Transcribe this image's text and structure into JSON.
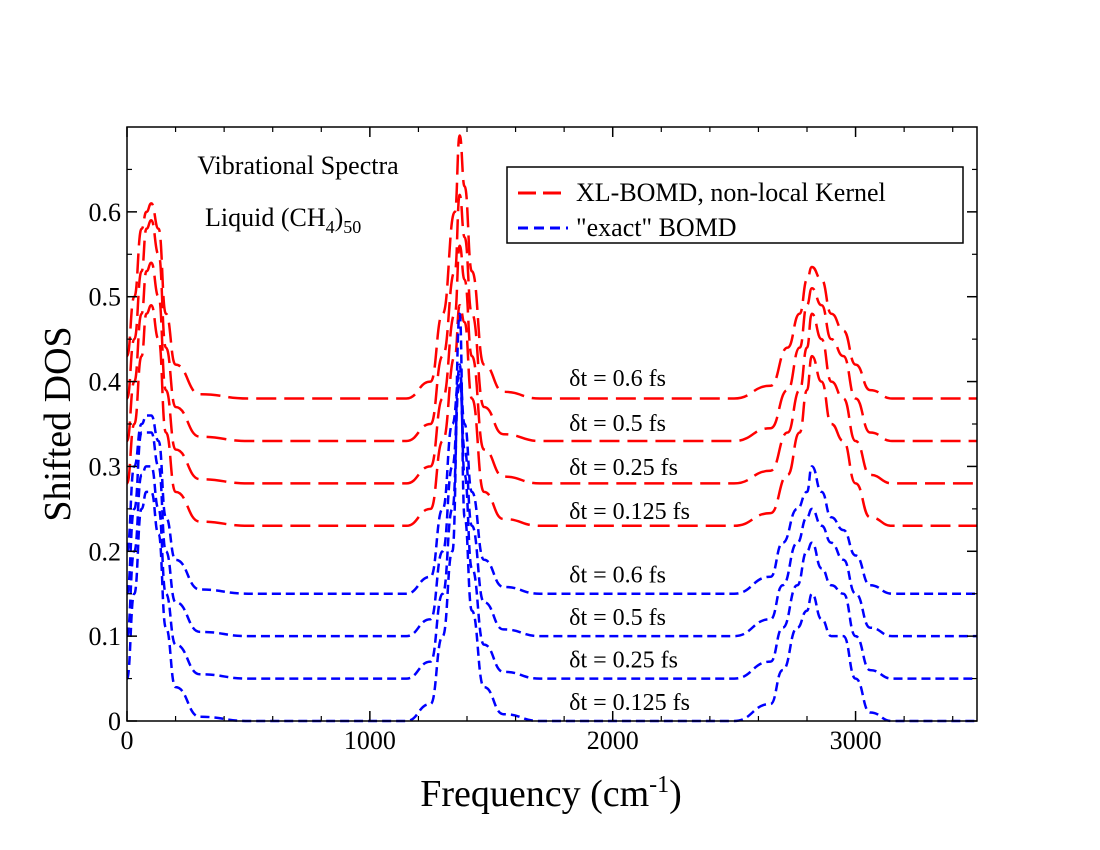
{
  "chart_data": {
    "type": "line",
    "title_lines": [
      "Vibrational Spectra",
      "Liquid (CH",
      "4",
      ")",
      "50"
    ],
    "xlabel": "Frequency (cm",
    "xlabel_sup": "-1",
    "xlabel_close": ")",
    "ylabel": "Shifted DOS",
    "xlim": [
      0,
      3500
    ],
    "ylim": [
      0,
      0.7
    ],
    "x_ticks": [
      0,
      1000,
      2000,
      3000
    ],
    "x_tick_labels": [
      "0",
      "1000",
      "2000",
      "3000"
    ],
    "y_ticks": [
      0,
      0.1,
      0.2,
      0.3,
      0.4,
      0.5,
      0.6
    ],
    "y_tick_labels": [
      "0",
      "0.1",
      "0.2",
      "0.3",
      "0.4",
      "0.5",
      "0.6"
    ],
    "legend": {
      "placement": "top-right",
      "entries": [
        {
          "label": "XL-BOMD, non-local Kernel",
          "color": "#ff0000",
          "style": "long-dash"
        },
        {
          "label": "\"exact\" BOMD",
          "color": "#0000ff",
          "style": "short-dash"
        }
      ]
    },
    "annotations": [
      {
        "text": "δt = 0.6 fs",
        "x": 1800,
        "y": 0.395
      },
      {
        "text": "δt = 0.5 fs",
        "x": 1800,
        "y": 0.342
      },
      {
        "text": "δt = 0.25 fs",
        "x": 1800,
        "y": 0.29
      },
      {
        "text": "δt = 0.125 fs",
        "x": 1800,
        "y": 0.238
      },
      {
        "text": "δt = 0.6 fs",
        "x": 1800,
        "y": 0.163
      },
      {
        "text": "δt = 0.5 fs",
        "x": 1800,
        "y": 0.113
      },
      {
        "text": "δt = 0.25 fs",
        "x": 1800,
        "y": 0.063
      },
      {
        "text": "δt = 0.125 fs",
        "x": 1800,
        "y": 0.013
      }
    ],
    "series": [
      {
        "name": "XL-BOMD δt = 0.125 fs",
        "color": "#ff0000",
        "dash": "long",
        "offset": 0.23,
        "points": [
          [
            0,
            0.05
          ],
          [
            30,
            0.12
          ],
          [
            60,
            0.2
          ],
          [
            80,
            0.25
          ],
          [
            100,
            0.26
          ],
          [
            130,
            0.22
          ],
          [
            160,
            0.11
          ],
          [
            200,
            0.04
          ],
          [
            300,
            0.005
          ],
          [
            500,
            0
          ],
          [
            1150,
            0
          ],
          [
            1250,
            0.02
          ],
          [
            1300,
            0.1
          ],
          [
            1350,
            0.2
          ],
          [
            1370,
            0.26
          ],
          [
            1390,
            0.24
          ],
          [
            1420,
            0.15
          ],
          [
            1470,
            0.04
          ],
          [
            1550,
            0.008
          ],
          [
            1700,
            0
          ],
          [
            2500,
            0
          ],
          [
            2650,
            0.015
          ],
          [
            2720,
            0.06
          ],
          [
            2770,
            0.11
          ],
          [
            2800,
            0.16
          ],
          [
            2820,
            0.2
          ],
          [
            2860,
            0.17
          ],
          [
            2900,
            0.12
          ],
          [
            2950,
            0.1
          ],
          [
            3000,
            0.05
          ],
          [
            3060,
            0.01
          ],
          [
            3150,
            0
          ],
          [
            3500,
            0
          ]
        ]
      },
      {
        "name": "XL-BOMD δt = 0.25 fs",
        "color": "#ff0000",
        "dash": "long",
        "offset": 0.28,
        "points": [
          [
            0,
            0.05
          ],
          [
            30,
            0.12
          ],
          [
            60,
            0.2
          ],
          [
            80,
            0.25
          ],
          [
            100,
            0.26
          ],
          [
            130,
            0.22
          ],
          [
            160,
            0.11
          ],
          [
            200,
            0.04
          ],
          [
            300,
            0.005
          ],
          [
            500,
            0
          ],
          [
            1150,
            0
          ],
          [
            1250,
            0.02
          ],
          [
            1300,
            0.1
          ],
          [
            1350,
            0.2
          ],
          [
            1370,
            0.28
          ],
          [
            1390,
            0.24
          ],
          [
            1420,
            0.15
          ],
          [
            1470,
            0.04
          ],
          [
            1550,
            0.008
          ],
          [
            1700,
            0
          ],
          [
            2500,
            0
          ],
          [
            2650,
            0.015
          ],
          [
            2720,
            0.06
          ],
          [
            2770,
            0.11
          ],
          [
            2800,
            0.16
          ],
          [
            2820,
            0.2
          ],
          [
            2860,
            0.17
          ],
          [
            2900,
            0.12
          ],
          [
            2950,
            0.1
          ],
          [
            3000,
            0.05
          ],
          [
            3060,
            0.01
          ],
          [
            3150,
            0
          ],
          [
            3500,
            0
          ]
        ]
      },
      {
        "name": "XL-BOMD δt = 0.5 fs",
        "color": "#ff0000",
        "dash": "long",
        "offset": 0.33,
        "points": [
          [
            0,
            0.05
          ],
          [
            30,
            0.12
          ],
          [
            60,
            0.2
          ],
          [
            80,
            0.25
          ],
          [
            100,
            0.26
          ],
          [
            130,
            0.22
          ],
          [
            160,
            0.11
          ],
          [
            200,
            0.04
          ],
          [
            300,
            0.005
          ],
          [
            500,
            0
          ],
          [
            1150,
            0
          ],
          [
            1250,
            0.02
          ],
          [
            1300,
            0.1
          ],
          [
            1350,
            0.2
          ],
          [
            1370,
            0.29
          ],
          [
            1390,
            0.24
          ],
          [
            1420,
            0.15
          ],
          [
            1470,
            0.04
          ],
          [
            1550,
            0.008
          ],
          [
            1700,
            0
          ],
          [
            2500,
            0
          ],
          [
            2650,
            0.015
          ],
          [
            2720,
            0.06
          ],
          [
            2770,
            0.11
          ],
          [
            2800,
            0.16
          ],
          [
            2820,
            0.18
          ],
          [
            2860,
            0.16
          ],
          [
            2900,
            0.12
          ],
          [
            2950,
            0.1
          ],
          [
            3000,
            0.05
          ],
          [
            3060,
            0.01
          ],
          [
            3150,
            0
          ],
          [
            3500,
            0
          ]
        ]
      },
      {
        "name": "XL-BOMD δt = 0.6 fs",
        "color": "#ff0000",
        "dash": "long",
        "offset": 0.38,
        "points": [
          [
            0,
            0.05
          ],
          [
            30,
            0.12
          ],
          [
            60,
            0.2
          ],
          [
            80,
            0.22
          ],
          [
            100,
            0.23
          ],
          [
            130,
            0.2
          ],
          [
            160,
            0.1
          ],
          [
            200,
            0.04
          ],
          [
            300,
            0.005
          ],
          [
            500,
            0
          ],
          [
            1150,
            0
          ],
          [
            1250,
            0.02
          ],
          [
            1300,
            0.1
          ],
          [
            1350,
            0.22
          ],
          [
            1370,
            0.31
          ],
          [
            1390,
            0.25
          ],
          [
            1420,
            0.15
          ],
          [
            1470,
            0.04
          ],
          [
            1550,
            0.008
          ],
          [
            1700,
            0
          ],
          [
            2500,
            0
          ],
          [
            2650,
            0.015
          ],
          [
            2720,
            0.06
          ],
          [
            2770,
            0.1
          ],
          [
            2800,
            0.14
          ],
          [
            2820,
            0.155
          ],
          [
            2860,
            0.14
          ],
          [
            2900,
            0.1
          ],
          [
            2950,
            0.08
          ],
          [
            3000,
            0.04
          ],
          [
            3060,
            0.01
          ],
          [
            3150,
            0
          ],
          [
            3500,
            0
          ]
        ]
      },
      {
        "name": "BOMD δt = 0.125 fs",
        "color": "#0000ff",
        "dash": "short",
        "offset": 0.0,
        "points": [
          [
            0,
            0.05
          ],
          [
            30,
            0.15
          ],
          [
            60,
            0.25
          ],
          [
            80,
            0.27
          ],
          [
            100,
            0.27
          ],
          [
            130,
            0.22
          ],
          [
            160,
            0.11
          ],
          [
            200,
            0.04
          ],
          [
            300,
            0.005
          ],
          [
            500,
            0
          ],
          [
            1150,
            0
          ],
          [
            1250,
            0.02
          ],
          [
            1300,
            0.1
          ],
          [
            1340,
            0.2
          ],
          [
            1370,
            0.48
          ],
          [
            1390,
            0.24
          ],
          [
            1420,
            0.13
          ],
          [
            1470,
            0.04
          ],
          [
            1550,
            0.008
          ],
          [
            1700,
            0
          ],
          [
            2500,
            0
          ],
          [
            2650,
            0.02
          ],
          [
            2700,
            0.06
          ],
          [
            2760,
            0.11
          ],
          [
            2800,
            0.13
          ],
          [
            2820,
            0.15
          ],
          [
            2860,
            0.12
          ],
          [
            2900,
            0.1
          ],
          [
            2950,
            0.1
          ],
          [
            3000,
            0.05
          ],
          [
            3060,
            0.01
          ],
          [
            3150,
            0
          ],
          [
            3500,
            0
          ]
        ]
      },
      {
        "name": "BOMD δt = 0.25 fs",
        "color": "#0000ff",
        "dash": "short",
        "offset": 0.05,
        "points": [
          [
            0,
            0.05
          ],
          [
            30,
            0.15
          ],
          [
            60,
            0.24
          ],
          [
            80,
            0.25
          ],
          [
            100,
            0.25
          ],
          [
            130,
            0.2
          ],
          [
            160,
            0.1
          ],
          [
            200,
            0.04
          ],
          [
            300,
            0.005
          ],
          [
            500,
            0
          ],
          [
            1150,
            0
          ],
          [
            1250,
            0.02
          ],
          [
            1300,
            0.1
          ],
          [
            1340,
            0.2
          ],
          [
            1370,
            0.37
          ],
          [
            1390,
            0.24
          ],
          [
            1420,
            0.13
          ],
          [
            1470,
            0.04
          ],
          [
            1550,
            0.008
          ],
          [
            1700,
            0
          ],
          [
            2500,
            0
          ],
          [
            2650,
            0.02
          ],
          [
            2700,
            0.06
          ],
          [
            2760,
            0.11
          ],
          [
            2800,
            0.15
          ],
          [
            2820,
            0.16
          ],
          [
            2860,
            0.13
          ],
          [
            2900,
            0.11
          ],
          [
            2950,
            0.1
          ],
          [
            3000,
            0.05
          ],
          [
            3060,
            0.01
          ],
          [
            3150,
            0
          ],
          [
            3500,
            0
          ]
        ]
      },
      {
        "name": "BOMD δt = 0.5 fs",
        "color": "#0000ff",
        "dash": "short",
        "offset": 0.1,
        "points": [
          [
            0,
            0.05
          ],
          [
            30,
            0.15
          ],
          [
            60,
            0.24
          ],
          [
            80,
            0.24
          ],
          [
            100,
            0.24
          ],
          [
            130,
            0.2
          ],
          [
            160,
            0.1
          ],
          [
            200,
            0.04
          ],
          [
            300,
            0.005
          ],
          [
            500,
            0
          ],
          [
            1150,
            0
          ],
          [
            1250,
            0.02
          ],
          [
            1300,
            0.1
          ],
          [
            1340,
            0.2
          ],
          [
            1370,
            0.3
          ],
          [
            1390,
            0.22
          ],
          [
            1420,
            0.13
          ],
          [
            1470,
            0.04
          ],
          [
            1550,
            0.008
          ],
          [
            1700,
            0
          ],
          [
            2500,
            0
          ],
          [
            2650,
            0.02
          ],
          [
            2700,
            0.06
          ],
          [
            2760,
            0.11
          ],
          [
            2800,
            0.14
          ],
          [
            2820,
            0.15
          ],
          [
            2860,
            0.13
          ],
          [
            2900,
            0.11
          ],
          [
            2950,
            0.09
          ],
          [
            3000,
            0.05
          ],
          [
            3060,
            0.01
          ],
          [
            3150,
            0
          ],
          [
            3500,
            0
          ]
        ]
      },
      {
        "name": "BOMD δt = 0.6 fs",
        "color": "#0000ff",
        "dash": "short",
        "offset": 0.15,
        "points": [
          [
            0,
            0.05
          ],
          [
            30,
            0.15
          ],
          [
            60,
            0.2
          ],
          [
            80,
            0.21
          ],
          [
            100,
            0.21
          ],
          [
            130,
            0.18
          ],
          [
            160,
            0.09
          ],
          [
            200,
            0.04
          ],
          [
            300,
            0.005
          ],
          [
            500,
            0
          ],
          [
            1150,
            0
          ],
          [
            1250,
            0.02
          ],
          [
            1300,
            0.1
          ],
          [
            1340,
            0.2
          ],
          [
            1370,
            0.26
          ],
          [
            1390,
            0.2
          ],
          [
            1420,
            0.12
          ],
          [
            1470,
            0.04
          ],
          [
            1550,
            0.008
          ],
          [
            1700,
            0
          ],
          [
            2500,
            0
          ],
          [
            2650,
            0.02
          ],
          [
            2700,
            0.06
          ],
          [
            2760,
            0.1
          ],
          [
            2800,
            0.12
          ],
          [
            2820,
            0.15
          ],
          [
            2860,
            0.12
          ],
          [
            2900,
            0.09
          ],
          [
            2950,
            0.075
          ],
          [
            3000,
            0.045
          ],
          [
            3060,
            0.01
          ],
          [
            3150,
            0
          ],
          [
            3500,
            0
          ]
        ]
      }
    ]
  }
}
